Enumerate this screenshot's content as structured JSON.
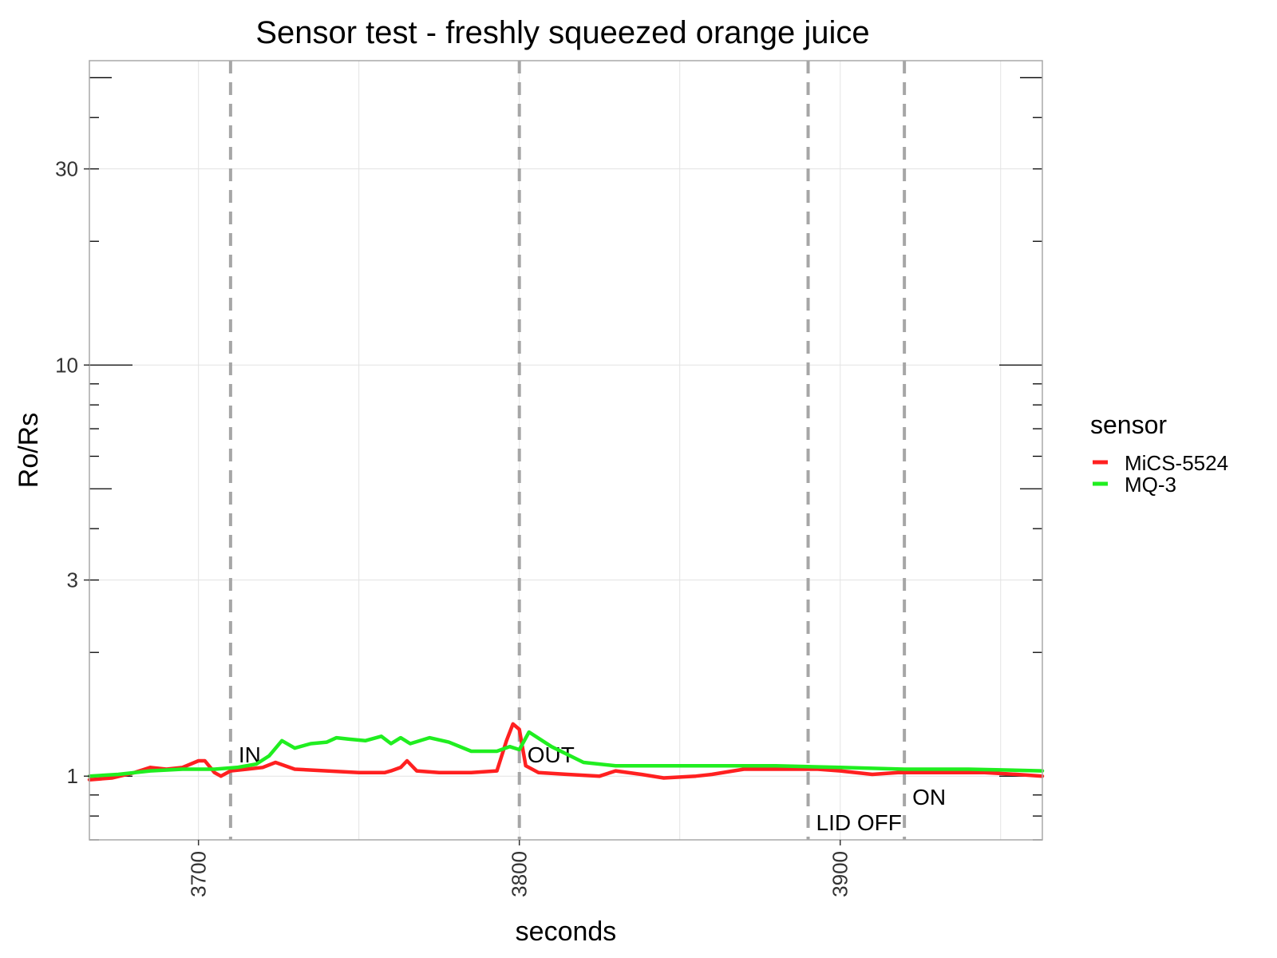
{
  "chart_data": {
    "type": "line",
    "title": "Sensor test - freshly squeezed orange juice",
    "xlabel": "seconds",
    "ylabel": "Ro/Rs",
    "x_scale": "linear",
    "y_scale": "log",
    "xlim": [
      3666,
      3963
    ],
    "ylim": [
      0.7,
      55
    ],
    "x_ticks": [
      3700,
      3800,
      3900
    ],
    "y_ticks": [
      1,
      3,
      10,
      30
    ],
    "grid": true,
    "legend": {
      "title": "sensor",
      "position": "right"
    },
    "series": [
      {
        "name": "MiCS-5524",
        "color": "#ff2020",
        "x": [
          3666,
          3673,
          3680,
          3685,
          3690,
          3695,
          3700,
          3702,
          3705,
          3707,
          3710,
          3715,
          3720,
          3724,
          3730,
          3740,
          3750,
          3758,
          3760,
          3763,
          3765,
          3768,
          3775,
          3785,
          3793,
          3796,
          3798,
          3800,
          3802,
          3806,
          3815,
          3825,
          3830,
          3838,
          3845,
          3855,
          3860,
          3870,
          3880,
          3890,
          3893,
          3900,
          3910,
          3918,
          3925,
          3935,
          3945,
          3955,
          3963
        ],
        "y": [
          0.98,
          0.99,
          1.02,
          1.05,
          1.04,
          1.05,
          1.09,
          1.09,
          1.02,
          1.0,
          1.03,
          1.04,
          1.05,
          1.08,
          1.04,
          1.03,
          1.02,
          1.02,
          1.03,
          1.05,
          1.09,
          1.03,
          1.02,
          1.02,
          1.03,
          1.22,
          1.34,
          1.3,
          1.06,
          1.02,
          1.01,
          1.0,
          1.03,
          1.01,
          0.99,
          1.0,
          1.01,
          1.04,
          1.04,
          1.04,
          1.04,
          1.03,
          1.01,
          1.02,
          1.02,
          1.02,
          1.02,
          1.01,
          1.0
        ]
      },
      {
        "name": "MQ-3",
        "color": "#20ee20",
        "x": [
          3666,
          3675,
          3685,
          3695,
          3705,
          3712,
          3718,
          3722,
          3726,
          3730,
          3735,
          3740,
          3743,
          3747,
          3752,
          3757,
          3760,
          3763,
          3766,
          3772,
          3778,
          3785,
          3793,
          3797,
          3800,
          3803,
          3810,
          3820,
          3830,
          3845,
          3860,
          3880,
          3900,
          3920,
          3940,
          3963
        ],
        "y": [
          1.0,
          1.01,
          1.03,
          1.04,
          1.04,
          1.05,
          1.07,
          1.12,
          1.22,
          1.17,
          1.2,
          1.21,
          1.24,
          1.23,
          1.22,
          1.25,
          1.2,
          1.24,
          1.2,
          1.24,
          1.21,
          1.15,
          1.15,
          1.18,
          1.16,
          1.28,
          1.18,
          1.08,
          1.06,
          1.06,
          1.06,
          1.06,
          1.05,
          1.04,
          1.04,
          1.03
        ]
      }
    ],
    "vertical_markers": [
      {
        "x": 3710,
        "label": "IN"
      },
      {
        "x": 3800,
        "label": "OUT"
      },
      {
        "x": 3890,
        "label": "LID OFF"
      },
      {
        "x": 3920,
        "label": "ON"
      }
    ]
  }
}
